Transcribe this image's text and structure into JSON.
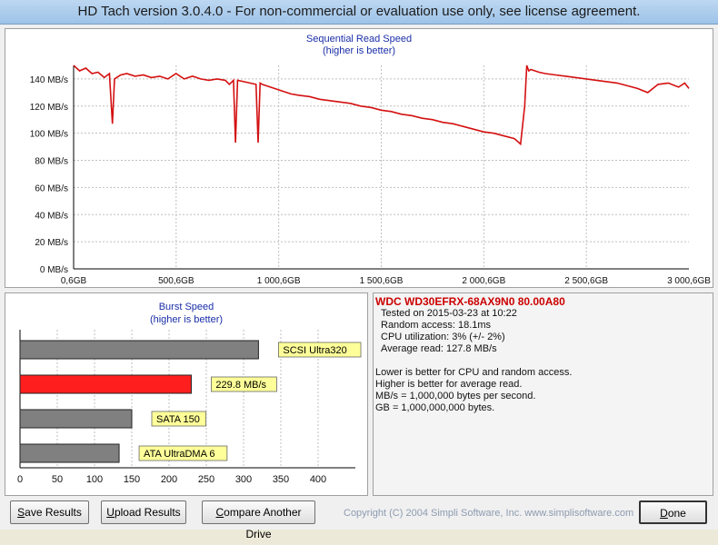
{
  "window": {
    "title": "HD Tach version 3.0.4.0  - For non-commercial or evaluation use only, see license agreement."
  },
  "colors": {
    "line": "#d41010",
    "grid": "#bfbfbf",
    "title_text": "#1a2ea8",
    "bar_gray": "#808080",
    "bar_red": "#ff1e1e",
    "label_bg": "#ffff99"
  },
  "chart_data": [
    {
      "type": "line",
      "title": "Sequential Read Speed",
      "subtitle": "(higher is better)",
      "xlabel": "",
      "ylabel": "",
      "xlim": [
        0.6,
        3000.6
      ],
      "ylim": [
        0,
        150
      ],
      "ytick_values": [
        0,
        20,
        40,
        60,
        80,
        100,
        120,
        140
      ],
      "yticks": [
        "0 MB/s",
        "20 MB/s",
        "40 MB/s",
        "60 MB/s",
        "80 MB/s",
        "100 MB/s",
        "120 MB/s",
        "140 MB/s"
      ],
      "xtick_values": [
        0.6,
        500.6,
        1000.6,
        1500.6,
        2000.6,
        2500.6,
        3000.6
      ],
      "xticks": [
        "0,6GB",
        "500,6GB",
        "1 000,6GB",
        "1 500,6GB",
        "2 000,6GB",
        "2 500,6GB",
        "3 000,6GB"
      ],
      "grid": true,
      "series": [
        {
          "x": [
            0.6,
            30,
            60,
            90,
            120,
            150,
            175,
            190,
            200,
            230,
            260,
            300,
            340,
            380,
            420,
            460,
            500,
            540,
            580,
            620,
            660,
            700,
            740,
            760,
            780,
            790,
            800,
            830,
            860,
            890,
            900,
            910,
            920,
            940,
            980,
            1020,
            1060,
            1100,
            1150,
            1200,
            1250,
            1300,
            1350,
            1400,
            1450,
            1500,
            1550,
            1600,
            1650,
            1700,
            1750,
            1800,
            1850,
            1900,
            1950,
            2000,
            2050,
            2100,
            2150,
            2180,
            2200,
            2210,
            2220,
            2230,
            2250,
            2270,
            2300,
            2350,
            2400,
            2450,
            2500,
            2550,
            2600,
            2650,
            2700,
            2750,
            2800,
            2850,
            2900,
            2950,
            2980,
            3000.6
          ],
          "y": [
            150,
            146,
            148,
            144,
            145,
            141,
            144,
            107,
            140,
            143,
            144,
            142,
            143,
            141,
            142,
            140,
            144,
            140,
            142,
            140,
            139,
            140,
            139,
            136,
            139,
            93,
            139,
            138,
            137,
            136,
            93,
            137,
            136,
            135,
            133,
            131,
            129,
            128,
            127,
            125,
            124,
            123,
            122,
            120,
            119,
            117,
            116,
            114,
            113,
            111,
            110,
            108,
            107,
            105,
            103,
            101,
            100,
            98,
            96,
            92,
            120,
            150,
            146,
            147,
            146,
            145,
            144,
            143,
            142,
            141,
            140,
            139,
            138,
            137,
            135,
            133,
            130,
            136,
            137,
            134,
            137,
            133
          ]
        }
      ]
    },
    {
      "type": "bar",
      "orientation": "horizontal",
      "title": "Burst Speed",
      "subtitle": "(higher is better)",
      "xlim": [
        0,
        450
      ],
      "xtick_values": [
        0,
        50,
        100,
        150,
        200,
        250,
        300,
        350,
        400
      ],
      "xticks": [
        "0",
        "50",
        "100",
        "150",
        "200",
        "250",
        "300",
        "350",
        "400"
      ],
      "categories": [
        "SCSI Ultra320",
        "229.8 MB/s",
        "SATA 150",
        "ATA UltraDMA 6"
      ],
      "values": [
        320,
        229.8,
        150,
        133
      ],
      "highlight": [
        false,
        true,
        false,
        false
      ]
    }
  ],
  "info": {
    "drive": "WDC WD30EFRX-68AX9N0 80.00A80",
    "tested": "Tested on 2015-03-23 at 10:22",
    "random_access": "Random access: 18.1ms",
    "cpu": "CPU utilization: 3% (+/- 2%)",
    "average_read": "Average read: 127.8 MB/s",
    "note1": "Lower is better for CPU and random access.",
    "note2": "Higher is better for average read.",
    "note3": "MB/s = 1,000,000 bytes per second.",
    "note4": "GB = 1,000,000,000 bytes."
  },
  "buttons": {
    "save_first": "S",
    "save_rest": "ave Results",
    "upload_first": "U",
    "upload_rest": "pload Results",
    "compare_first": "C",
    "compare_rest": "ompare Another Drive",
    "done_first": "D",
    "done_rest": "one"
  },
  "copyright": "Copyright (C) 2004 Simpli Software, Inc. www.simplisoftware.com"
}
